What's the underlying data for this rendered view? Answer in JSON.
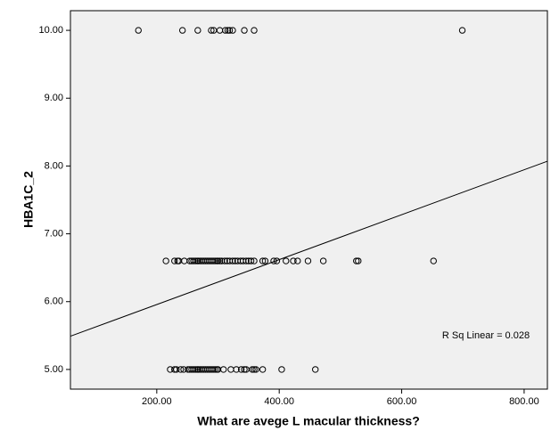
{
  "chart_data": {
    "type": "scatter",
    "x_label": "What are avege L macular thickness?",
    "y_label": "HBA1C_2",
    "annotation": "R Sq Linear = 0.028",
    "x": [
      170,
      242,
      267,
      289,
      293,
      303,
      312,
      316,
      319,
      324,
      343,
      359,
      699,
      215,
      229,
      234,
      236,
      245,
      254,
      257,
      260,
      263,
      266,
      268,
      271,
      274,
      277,
      280,
      283,
      286,
      289,
      292,
      295,
      298,
      300,
      303,
      306,
      311,
      315,
      319,
      324,
      328,
      332,
      337,
      341,
      346,
      350,
      354,
      359,
      373,
      377,
      391,
      396,
      411,
      423,
      430,
      447,
      472,
      526,
      529,
      652,
      222,
      229,
      232,
      239,
      244,
      251,
      254,
      257,
      260,
      263,
      266,
      268,
      271,
      274,
      277,
      280,
      283,
      286,
      289,
      292,
      295,
      298,
      300,
      309,
      321,
      330,
      338,
      343,
      346,
      356,
      359,
      362,
      373,
      404,
      459
    ],
    "y": [
      10,
      10,
      10,
      10,
      10,
      10,
      10,
      10,
      10,
      10,
      10,
      10,
      10,
      6.6,
      6.6,
      6.6,
      6.6,
      6.6,
      6.6,
      6.6,
      6.6,
      6.6,
      6.6,
      6.6,
      6.6,
      6.6,
      6.6,
      6.6,
      6.6,
      6.6,
      6.6,
      6.6,
      6.6,
      6.6,
      6.6,
      6.6,
      6.6,
      6.6,
      6.6,
      6.6,
      6.6,
      6.6,
      6.6,
      6.6,
      6.6,
      6.6,
      6.6,
      6.6,
      6.6,
      6.6,
      6.6,
      6.6,
      6.6,
      6.6,
      6.6,
      6.6,
      6.6,
      6.6,
      6.6,
      6.6,
      6.6,
      5,
      5,
      5,
      5,
      5,
      5,
      5,
      5,
      5,
      5,
      5,
      5,
      5,
      5,
      5,
      5,
      5,
      5,
      5,
      5,
      5,
      5,
      5,
      5,
      5,
      5,
      5,
      5,
      5,
      5,
      5,
      5,
      5,
      5,
      5
    ],
    "fit_line": {
      "x": [
        59,
        838
      ],
      "y": [
        5.49,
        8.07
      ]
    },
    "xlim": [
      59,
      838
    ],
    "ylim": [
      4.71,
      10.29
    ],
    "xticks": [
      {
        "value": 200,
        "label": "200.00"
      },
      {
        "value": 400,
        "label": "400.00"
      },
      {
        "value": 600,
        "label": "600.00"
      },
      {
        "value": 800,
        "label": "800.00"
      }
    ],
    "yticks": [
      {
        "value": 5,
        "label": "5.00"
      },
      {
        "value": 6,
        "label": "6.00"
      },
      {
        "value": 7,
        "label": "7.00"
      },
      {
        "value": 8,
        "label": "8.00"
      },
      {
        "value": 9,
        "label": "9.00"
      },
      {
        "value": 10,
        "label": "10.00"
      }
    ],
    "background": "#f0f0f0",
    "marker_color": "#000000"
  }
}
